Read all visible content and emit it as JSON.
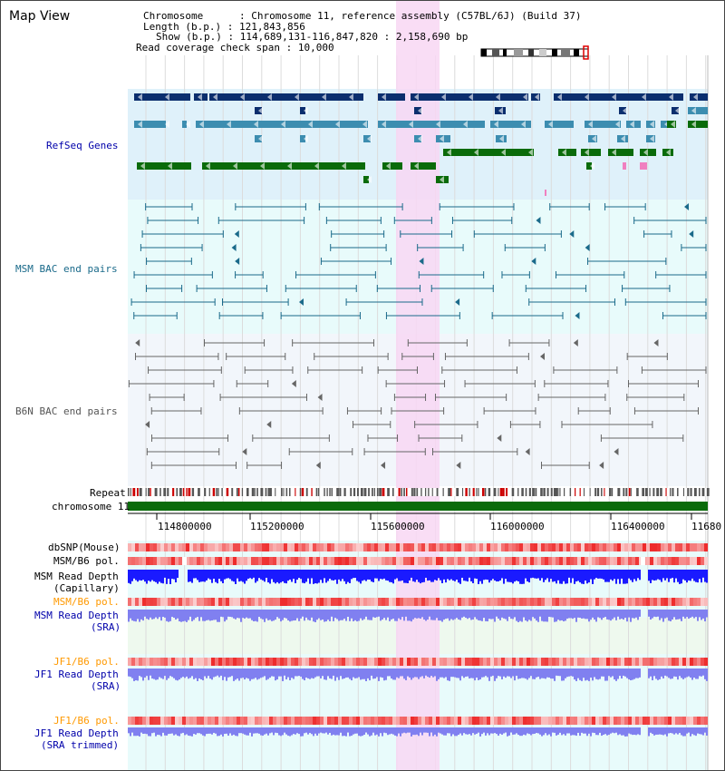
{
  "page_title": "Map View",
  "header": {
    "line1_key": "Chromosome",
    "line1_val": "Chromosome 11, reference assembly (C57BL/6J) (Build 37)",
    "line2_key": "Length (b.p.)",
    "line2_val": "121,843,856",
    "line3_key": "Show (b.p.)",
    "line3_val": "114,689,131-116,847,820 : 2,158,690 bp",
    "line4_key": "Read coverage check span",
    "line4_val": "10,000"
  },
  "tracks": {
    "refseq": "RefSeq Genes",
    "msm_bac": "MSM BAC end pairs",
    "b6n_bac": "B6N BAC end pairs",
    "repeat": "Repeat",
    "chromosome": "chromosome 11",
    "dbsnp": "dbSNP(Mouse)",
    "msm_b6_pol": "MSM/B6 pol.",
    "msm_read_depth_cap_1": "MSM Read Depth",
    "msm_read_depth_cap_2": "(Capillary)",
    "msm_b6_pol_sra": "MSM/B6 pol.",
    "msm_read_depth_sra_1": "MSM Read Depth",
    "msm_read_depth_sra_2": "(SRA)",
    "jf1_b6_pol": "JF1/B6 pol.",
    "jf1_read_depth_1": "JF1 Read Depth",
    "jf1_read_depth_2": "(SRA)",
    "jf1_b6_pol_2": "JF1/B6 pol.",
    "jf1_read_depth_trim_1": "JF1 Read Depth",
    "jf1_read_depth_trim_2": "(SRA trimmed)"
  },
  "axis": {
    "ticks": [
      "114800000",
      "115200000",
      "115600000",
      "116000000",
      "116400000",
      "11680"
    ]
  },
  "colors": {
    "refseq_bg": "#dff1fa",
    "msm_bg": "#e8fbfb",
    "b6n_bg": "#f2f6fb",
    "highlight": "#f8d7f3",
    "refseq_dark": "#0b2e6e",
    "refseq_mid": "#3c8db0",
    "refseq_green": "#0a6b0a",
    "msm_pair": "#1a6a8a",
    "b6n_pair": "#666666",
    "chrom_green": "#0a6b0a",
    "label_blue": "#0000aa",
    "label_orange": "#ff9900"
  }
}
